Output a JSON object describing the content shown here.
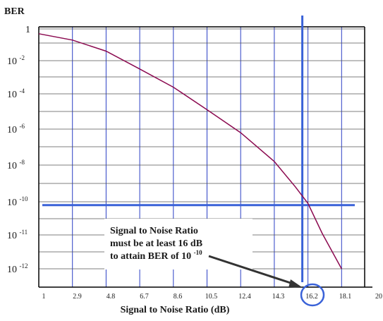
{
  "chart_data": {
    "type": "line",
    "ylabel": "BER",
    "xlabel": "Signal to Noise Ratio (dB)",
    "y_scale": "log",
    "grid": true,
    "x_ticks": [
      "1",
      "2.9",
      "4.8",
      "6.7",
      "8.6",
      "10.5",
      "12.4",
      "14.3",
      "16.2",
      "18.1",
      "20"
    ],
    "y_ticks": [
      {
        "base": "1",
        "exp": ""
      },
      {
        "base": "10",
        "exp": "-2"
      },
      {
        "base": "10",
        "exp": "-4"
      },
      {
        "base": "10",
        "exp": "-6"
      },
      {
        "base": "10",
        "exp": "-8"
      },
      {
        "base": "10",
        "exp": "-10"
      },
      {
        "base": "10",
        "exp": "-11"
      },
      {
        "base": "10",
        "exp": "-12"
      }
    ],
    "series": [
      {
        "color": "#8b0a50",
        "x": [
          1.0,
          2.9,
          4.8,
          6.7,
          8.6,
          10.5,
          12.4,
          14.3,
          15.5,
          16.2,
          17.0,
          18.1
        ],
        "y_tick_index": [
          0.15,
          0.35,
          0.7,
          1.25,
          1.8,
          2.45,
          3.1,
          3.9,
          4.6,
          5.05,
          5.95,
          7.45
        ]
      }
    ],
    "reference_lines": {
      "vertical_x": 16.2,
      "horizontal_y": {
        "base": "10",
        "exp": "-10"
      },
      "color": "#3a62d8"
    },
    "annotation": {
      "lines": [
        "Signal to Noise Ratio",
        "must be at least 16 dB",
        "to attain BER of 10"
      ],
      "exp": "-10"
    },
    "highlight_tick": "16.2",
    "colors": {
      "grid": "#2b3fc4",
      "curve": "#8b0a50",
      "reference": "#3a62d8",
      "axis": "#000000"
    }
  }
}
